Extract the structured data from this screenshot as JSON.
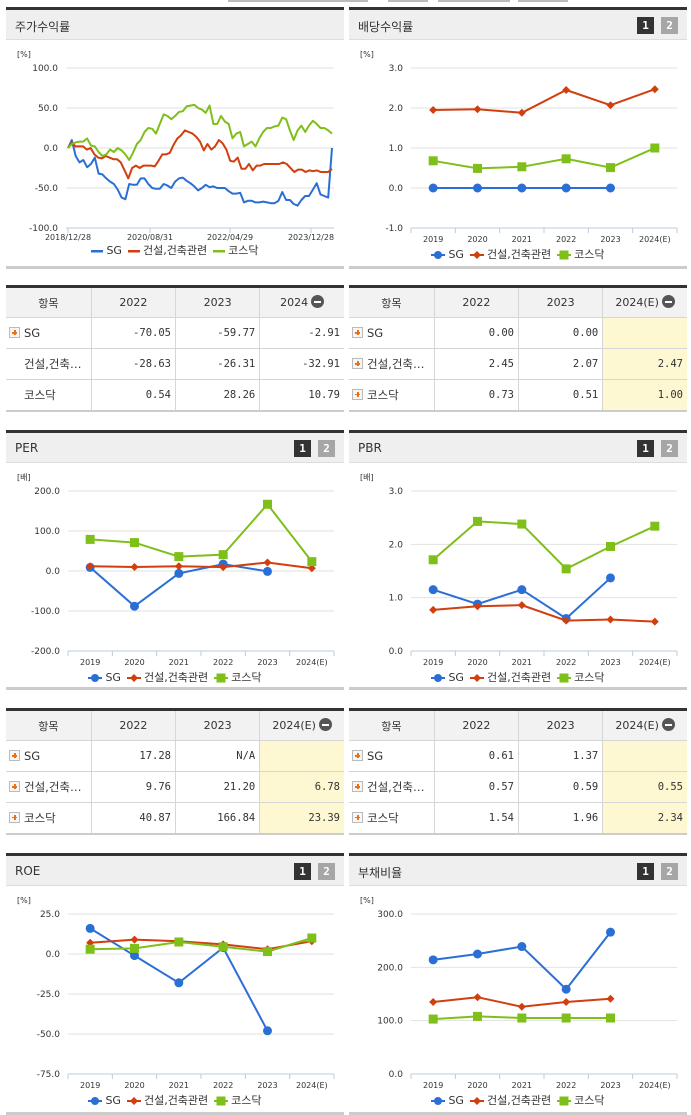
{
  "colors": {
    "sg": "#2b6fd6",
    "construction": "#d13f0e",
    "kosdaq": "#7fbf1a",
    "highlight": "#fdf8d2"
  },
  "legend": {
    "sg": "SG",
    "construction": "건설,건축관련",
    "kosdaq": "코스닥"
  },
  "pager": {
    "p1": "1",
    "p2": "2"
  },
  "panels": {
    "stock_return": {
      "title": "주가수익률",
      "unit": "[%]"
    },
    "dividend": {
      "title": "배당수익률",
      "unit": "[%]"
    },
    "per": {
      "title": "PER",
      "unit": "[배]"
    },
    "pbr": {
      "title": "PBR",
      "unit": "[배]"
    },
    "roe": {
      "title": "ROE",
      "unit": "[%]"
    },
    "debt": {
      "title": "부채비율",
      "unit": "[%]"
    }
  },
  "tables": {
    "stock_return": {
      "headers": [
        "항목",
        "2022",
        "2023",
        "2024"
      ],
      "rows": [
        {
          "name": "SG",
          "values": [
            "-70.05",
            "-59.77",
            "-2.91"
          ],
          "expand": true
        },
        {
          "name": "건설,건축…",
          "values": [
            "-28.63",
            "-26.31",
            "-32.91"
          ],
          "expand": false
        },
        {
          "name": "코스닥",
          "values": [
            "0.54",
            "28.26",
            "10.79"
          ],
          "expand": false
        }
      ]
    },
    "dividend": {
      "headers": [
        "항목",
        "2022",
        "2023",
        "2024(E)"
      ],
      "rows": [
        {
          "name": "SG",
          "values": [
            "0.00",
            "0.00",
            ""
          ]
        },
        {
          "name": "건설,건축…",
          "values": [
            "2.45",
            "2.07",
            "2.47"
          ]
        },
        {
          "name": "코스닥",
          "values": [
            "0.73",
            "0.51",
            "1.00"
          ]
        }
      ]
    },
    "per": {
      "headers": [
        "항목",
        "2022",
        "2023",
        "2024(E)"
      ],
      "rows": [
        {
          "name": "SG",
          "values": [
            "17.28",
            "N/A",
            ""
          ]
        },
        {
          "name": "건설,건축…",
          "values": [
            "9.76",
            "21.20",
            "6.78"
          ]
        },
        {
          "name": "코스닥",
          "values": [
            "40.87",
            "166.84",
            "23.39"
          ]
        }
      ]
    },
    "pbr": {
      "headers": [
        "항목",
        "2022",
        "2023",
        "2024(E)"
      ],
      "rows": [
        {
          "name": "SG",
          "values": [
            "0.61",
            "1.37",
            ""
          ]
        },
        {
          "name": "건설,건축…",
          "values": [
            "0.57",
            "0.59",
            "0.55"
          ]
        },
        {
          "name": "코스닥",
          "values": [
            "1.54",
            "1.96",
            "2.34"
          ]
        }
      ]
    }
  },
  "chart_data": [
    {
      "id": "stock_return",
      "type": "line",
      "title": "주가수익률",
      "ylabel": "[%]",
      "ylim": [
        -100,
        100
      ],
      "yticks": [
        "100.0",
        "50.0",
        "0.0",
        "-50.0",
        "-100.0"
      ],
      "xticks": [
        "2018/12/28",
        "2020/08/31",
        "2022/04/29",
        "2023/12/28"
      ],
      "grid": true,
      "legend_position": "bottom",
      "series": [
        {
          "name": "SG",
          "values": [
            0,
            10,
            -10,
            -18,
            -15,
            -24,
            -20,
            -12,
            -32,
            -33,
            -38,
            -42,
            -45,
            -52,
            -62,
            -64,
            -45,
            -46,
            -46,
            -38,
            -38,
            -45,
            -50,
            -51,
            -51,
            -45,
            -47,
            -50,
            -42,
            -38,
            -37,
            -41,
            -44,
            -48,
            -53,
            -50,
            -46,
            -49,
            -48,
            -50,
            -50,
            -50,
            -54,
            -57,
            -57,
            -56,
            -68,
            -66,
            -66,
            -68,
            -68,
            -67,
            -68,
            -69,
            -69,
            -66,
            -55,
            -65,
            -65,
            -70,
            -72,
            -65,
            -60,
            -60,
            -52,
            -44,
            -58,
            -60,
            -62,
            0
          ]
        },
        {
          "name": "건설,건축관련",
          "values": [
            0,
            7,
            2,
            2,
            2,
            -2,
            0,
            -8,
            -12,
            -13,
            -10,
            -12,
            -14,
            -14,
            -18,
            -28,
            -38,
            -25,
            -22,
            -25,
            -22,
            -22,
            -22,
            -23,
            -16,
            -8,
            -8,
            -6,
            4,
            12,
            16,
            22,
            20,
            18,
            14,
            8,
            -3,
            5,
            -2,
            2,
            10,
            6,
            -2,
            -16,
            -17,
            -12,
            -26,
            -26,
            -20,
            -28,
            -22,
            -22,
            -20,
            -20,
            -20,
            -20,
            -20,
            -18,
            -20,
            -25,
            -30,
            -27,
            -27,
            -30,
            -28,
            -29,
            -28,
            -30,
            -30,
            -30,
            -26
          ]
        },
        {
          "name": "코스닥",
          "values": [
            0,
            5,
            7,
            8,
            8,
            12,
            3,
            2,
            -5,
            -10,
            -8,
            -2,
            -5,
            0,
            -3,
            -8,
            -15,
            -6,
            5,
            10,
            20,
            25,
            24,
            18,
            30,
            42,
            40,
            36,
            40,
            45,
            46,
            52,
            53,
            54,
            50,
            48,
            44,
            53,
            30,
            30,
            40,
            33,
            30,
            12,
            18,
            20,
            2,
            5,
            8,
            2,
            12,
            20,
            25,
            25,
            27,
            28,
            38,
            36,
            22,
            10,
            22,
            28,
            20,
            28,
            34,
            30,
            25,
            25,
            22,
            18
          ]
        }
      ]
    },
    {
      "id": "dividend",
      "type": "line",
      "title": "배당수익률",
      "ylabel": "[%]",
      "ylim": [
        -1.0,
        3.0
      ],
      "yticks": [
        "3.0",
        "2.0",
        "1.0",
        "0.0",
        "-1.0"
      ],
      "categories": [
        "2019",
        "2020",
        "2021",
        "2022",
        "2023",
        "2024(E)"
      ],
      "grid": true,
      "legend_position": "bottom",
      "series": [
        {
          "name": "SG",
          "values": [
            0.0,
            0.0,
            0.0,
            0.0,
            0.0,
            null
          ]
        },
        {
          "name": "건설,건축관련",
          "values": [
            1.95,
            1.97,
            1.88,
            2.45,
            2.07,
            2.47
          ]
        },
        {
          "name": "코스닥",
          "values": [
            0.68,
            0.49,
            0.53,
            0.73,
            0.51,
            1.0
          ]
        }
      ]
    },
    {
      "id": "per",
      "type": "line",
      "title": "PER",
      "ylabel": "[배]",
      "ylim": [
        -200,
        200
      ],
      "yticks": [
        "200.0",
        "100.0",
        "0.0",
        "-100.0",
        "-200.0"
      ],
      "categories": [
        "2019",
        "2020",
        "2021",
        "2022",
        "2023",
        "2024(E)"
      ],
      "grid": true,
      "legend_position": "bottom",
      "series": [
        {
          "name": "SG",
          "values": [
            9,
            -88,
            -6,
            17.28,
            -1,
            null
          ]
        },
        {
          "name": "건설,건축관련",
          "values": [
            12,
            10,
            12,
            9.76,
            21.2,
            6.78
          ]
        },
        {
          "name": "코스닥",
          "values": [
            79,
            71,
            36,
            40.87,
            166.84,
            23.39
          ]
        }
      ]
    },
    {
      "id": "pbr",
      "type": "line",
      "title": "PBR",
      "ylabel": "[배]",
      "ylim": [
        0,
        3.0
      ],
      "yticks": [
        "3.0",
        "2.0",
        "1.0",
        "0.0"
      ],
      "categories": [
        "2019",
        "2020",
        "2021",
        "2022",
        "2023",
        "2024(E)"
      ],
      "grid": true,
      "legend_position": "bottom",
      "series": [
        {
          "name": "SG",
          "values": [
            1.15,
            0.88,
            1.15,
            0.61,
            1.37,
            null
          ]
        },
        {
          "name": "건설,건축관련",
          "values": [
            0.77,
            0.84,
            0.86,
            0.57,
            0.59,
            0.55
          ]
        },
        {
          "name": "코스닥",
          "values": [
            1.71,
            2.43,
            2.38,
            1.54,
            1.96,
            2.34
          ]
        }
      ]
    },
    {
      "id": "roe",
      "type": "line",
      "title": "ROE",
      "ylabel": "[%]",
      "ylim": [
        -75,
        25
      ],
      "yticks": [
        "25.0",
        "0.0",
        "-25.0",
        "-50.0",
        "-75.0"
      ],
      "categories": [
        "2019",
        "2020",
        "2021",
        "2022",
        "2023",
        "2024(E)"
      ],
      "grid": true,
      "legend_position": "bottom",
      "series": [
        {
          "name": "SG",
          "values": [
            16,
            -1,
            -18,
            4,
            -48,
            null
          ]
        },
        {
          "name": "건설,건축관련",
          "values": [
            7,
            9,
            8,
            6,
            3,
            8
          ]
        },
        {
          "name": "코스닥",
          "values": [
            3,
            3.5,
            7.5,
            4.5,
            1.5,
            10
          ]
        }
      ]
    },
    {
      "id": "debt",
      "type": "line",
      "title": "부채비율",
      "ylabel": "[%]",
      "ylim": [
        0,
        300
      ],
      "yticks": [
        "300.0",
        "200.0",
        "100.0",
        "0.0"
      ],
      "categories": [
        "2019",
        "2020",
        "2021",
        "2022",
        "2023",
        "2024(E)"
      ],
      "grid": true,
      "legend_position": "bottom",
      "series": [
        {
          "name": "SG",
          "values": [
            214,
            225,
            239,
            159,
            266,
            null
          ]
        },
        {
          "name": "건설,건축관련",
          "values": [
            135,
            144,
            126,
            135,
            141,
            null
          ]
        },
        {
          "name": "코스닥",
          "values": [
            103,
            108,
            105,
            105,
            105,
            null
          ]
        }
      ]
    }
  ]
}
